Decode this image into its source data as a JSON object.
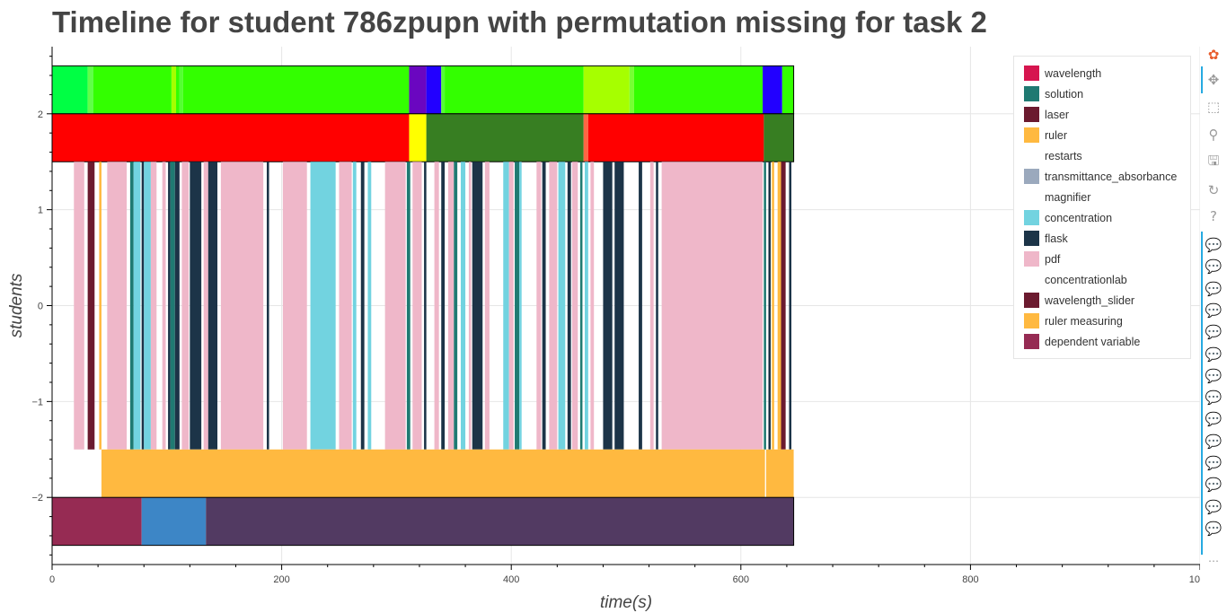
{
  "title": "Timeline for student 786zpupn with permutation missing for task 2",
  "chart_data": {
    "type": "bar",
    "orientation": "horizontal-timeline",
    "title": "Timeline for student 786zpupn with permutation missing for task 2",
    "xlabel": "time(s)",
    "ylabel": "students",
    "xlim": [
      0,
      1000
    ],
    "ylim": [
      -2.7,
      2.7
    ],
    "x_ticks": [
      0,
      200,
      400,
      600,
      800,
      1000
    ],
    "y_ticks": [
      -2,
      -1,
      0,
      1,
      2
    ],
    "x_tick_labels": [
      "0",
      "200",
      "400",
      "600",
      "800",
      "1000"
    ],
    "y_tick_labels": [
      "−2",
      "−1",
      "0",
      "1",
      "2"
    ],
    "grid": true,
    "legend_position": "top-right",
    "legend": [
      {
        "label": "wavelength",
        "color": "#d6154f"
      },
      {
        "label": "solution",
        "color": "#1f7a72"
      },
      {
        "label": "laser",
        "color": "#6b1a2f"
      },
      {
        "label": "ruler",
        "color": "#ffb940"
      },
      {
        "label": "restarts",
        "color": "#ffffff"
      },
      {
        "label": "transmittance_absorbance",
        "color": "#9ba9bd"
      },
      {
        "label": "magnifier",
        "color": "#ffffff"
      },
      {
        "label": "concentration",
        "color": "#72d3e0"
      },
      {
        "label": "flask",
        "color": "#1c3448"
      },
      {
        "label": "pdf",
        "color": "#efb7c9"
      },
      {
        "label": "concentrationlab",
        "color": "#ffffff"
      },
      {
        "label": "wavelength_slider",
        "color": "#6b1a2f"
      },
      {
        "label": "ruler measuring",
        "color": "#ffb940"
      },
      {
        "label": "dependent variable",
        "color": "#962b53"
      }
    ],
    "rows": [
      {
        "y0": 2.0,
        "y1": 2.5,
        "border": true,
        "segments": [
          {
            "x0": 0,
            "x1": 31,
            "color": "#00ff44"
          },
          {
            "x0": 31,
            "x1": 36,
            "color": "#60ff48"
          },
          {
            "x0": 36,
            "x1": 104,
            "color": "#33ff00"
          },
          {
            "x0": 104,
            "x1": 108,
            "color": "#a6ff00"
          },
          {
            "x0": 108,
            "x1": 111,
            "color": "#33ff00"
          },
          {
            "x0": 111,
            "x1": 114,
            "color": "#55ff33"
          },
          {
            "x0": 114,
            "x1": 311,
            "color": "#33ff00"
          },
          {
            "x0": 311,
            "x1": 326,
            "color": "#6a06c0"
          },
          {
            "x0": 326,
            "x1": 339,
            "color": "#2200ff"
          },
          {
            "x0": 339,
            "x1": 342,
            "color": "#55ff33"
          },
          {
            "x0": 342,
            "x1": 463,
            "color": "#33ff00"
          },
          {
            "x0": 463,
            "x1": 503,
            "color": "#a6ff00"
          },
          {
            "x0": 503,
            "x1": 507,
            "color": "#77ff33"
          },
          {
            "x0": 507,
            "x1": 619,
            "color": "#33ff00"
          },
          {
            "x0": 619,
            "x1": 636,
            "color": "#2200ff"
          },
          {
            "x0": 636,
            "x1": 646,
            "color": "#33ff00"
          }
        ]
      },
      {
        "y0": 1.5,
        "y1": 2.0,
        "border": true,
        "segments": [
          {
            "x0": 0,
            "x1": 311,
            "color": "#ff0000"
          },
          {
            "x0": 311,
            "x1": 326,
            "color": "#ffff00"
          },
          {
            "x0": 326,
            "x1": 463,
            "color": "#377e22"
          },
          {
            "x0": 463,
            "x1": 467,
            "color": "#ff6644"
          },
          {
            "x0": 467,
            "x1": 620,
            "color": "#ff0000"
          },
          {
            "x0": 620,
            "x1": 646,
            "color": "#377e22"
          }
        ]
      },
      {
        "y0": -1.5,
        "y1": 1.5,
        "border": false,
        "segments": [
          {
            "x0": 19,
            "x1": 28,
            "color": "#efb7c9"
          },
          {
            "x0": 31,
            "x1": 37,
            "color": "#6b1a2f"
          },
          {
            "x0": 41,
            "x1": 43,
            "color": "#ffb940"
          },
          {
            "x0": 48,
            "x1": 65,
            "color": "#efb7c9"
          },
          {
            "x0": 68,
            "x1": 71,
            "color": "#1f7a72"
          },
          {
            "x0": 71,
            "x1": 77,
            "color": "#72d3e0"
          },
          {
            "x0": 78,
            "x1": 80,
            "color": "#1c3448"
          },
          {
            "x0": 80,
            "x1": 86,
            "color": "#72d3e0"
          },
          {
            "x0": 86,
            "x1": 91,
            "color": "#efb7c9"
          },
          {
            "x0": 96,
            "x1": 99,
            "color": "#efb7c9"
          },
          {
            "x0": 101,
            "x1": 103,
            "color": "#1c3448"
          },
          {
            "x0": 103,
            "x1": 107,
            "color": "#1f7a72"
          },
          {
            "x0": 107,
            "x1": 111,
            "color": "#1c3448"
          },
          {
            "x0": 113,
            "x1": 119,
            "color": "#efb7c9"
          },
          {
            "x0": 120,
            "x1": 130,
            "color": "#1c3448"
          },
          {
            "x0": 132,
            "x1": 136,
            "color": "#efb7c9"
          },
          {
            "x0": 136,
            "x1": 144,
            "color": "#1c3448"
          },
          {
            "x0": 147,
            "x1": 184,
            "color": "#efb7c9"
          },
          {
            "x0": 187,
            "x1": 189,
            "color": "#1c3448"
          },
          {
            "x0": 201,
            "x1": 222,
            "color": "#efb7c9"
          },
          {
            "x0": 225,
            "x1": 247,
            "color": "#72d3e0"
          },
          {
            "x0": 250,
            "x1": 261,
            "color": "#efb7c9"
          },
          {
            "x0": 262,
            "x1": 265,
            "color": "#72d3e0"
          },
          {
            "x0": 269,
            "x1": 272,
            "color": "#1c3448"
          },
          {
            "x0": 275,
            "x1": 278,
            "color": "#72d3e0"
          },
          {
            "x0": 290,
            "x1": 308,
            "color": "#efb7c9"
          },
          {
            "x0": 309,
            "x1": 312,
            "color": "#1f7a72"
          },
          {
            "x0": 314,
            "x1": 322,
            "color": "#efb7c9"
          },
          {
            "x0": 324,
            "x1": 326,
            "color": "#1c3448"
          },
          {
            "x0": 333,
            "x1": 337,
            "color": "#efb7c9"
          },
          {
            "x0": 339,
            "x1": 342,
            "color": "#1c3448"
          },
          {
            "x0": 345,
            "x1": 350,
            "color": "#efb7c9"
          },
          {
            "x0": 350,
            "x1": 353,
            "color": "#1f7a72"
          },
          {
            "x0": 356,
            "x1": 360,
            "color": "#72d3e0"
          },
          {
            "x0": 363,
            "x1": 365,
            "color": "#efb7c9"
          },
          {
            "x0": 366,
            "x1": 375,
            "color": "#1c3448"
          },
          {
            "x0": 377,
            "x1": 381,
            "color": "#efb7c9"
          },
          {
            "x0": 393,
            "x1": 398,
            "color": "#72d3e0"
          },
          {
            "x0": 398,
            "x1": 402,
            "color": "#efb7c9"
          },
          {
            "x0": 403,
            "x1": 407,
            "color": "#1f7a72"
          },
          {
            "x0": 407,
            "x1": 409,
            "color": "#72d3e0"
          },
          {
            "x0": 422,
            "x1": 426,
            "color": "#efb7c9"
          },
          {
            "x0": 427,
            "x1": 430,
            "color": "#1c3448"
          },
          {
            "x0": 433,
            "x1": 440,
            "color": "#efb7c9"
          },
          {
            "x0": 441,
            "x1": 447,
            "color": "#72d3e0"
          },
          {
            "x0": 449,
            "x1": 452,
            "color": "#1c3448"
          },
          {
            "x0": 453,
            "x1": 458,
            "color": "#efb7c9"
          },
          {
            "x0": 460,
            "x1": 462,
            "color": "#1f7a72"
          },
          {
            "x0": 464,
            "x1": 467,
            "color": "#72d3e0"
          },
          {
            "x0": 469,
            "x1": 472,
            "color": "#efb7c9"
          },
          {
            "x0": 480,
            "x1": 488,
            "color": "#1c3448"
          },
          {
            "x0": 490,
            "x1": 498,
            "color": "#1c3448"
          },
          {
            "x0": 511,
            "x1": 514,
            "color": "#1c3448"
          },
          {
            "x0": 521,
            "x1": 524,
            "color": "#efb7c9"
          },
          {
            "x0": 526,
            "x1": 528,
            "color": "#1c3448"
          },
          {
            "x0": 531,
            "x1": 619,
            "color": "#efb7c9"
          },
          {
            "x0": 620,
            "x1": 622,
            "color": "#1f7a72"
          },
          {
            "x0": 624,
            "x1": 626,
            "color": "#1c3448"
          },
          {
            "x0": 627,
            "x1": 629,
            "color": "#ffb940"
          },
          {
            "x0": 632,
            "x1": 635,
            "color": "#ffb940"
          },
          {
            "x0": 635,
            "x1": 639,
            "color": "#6b1a2f"
          },
          {
            "x0": 642,
            "x1": 644,
            "color": "#1c3448"
          }
        ]
      },
      {
        "y0": -2.0,
        "y1": -1.5,
        "border": false,
        "segments": [
          {
            "x0": 43,
            "x1": 621,
            "color": "#ffb940"
          },
          {
            "x0": 622,
            "x1": 646,
            "color": "#ffb940"
          }
        ]
      },
      {
        "y0": -2.5,
        "y1": -2.0,
        "border": true,
        "segments": [
          {
            "x0": 0,
            "x1": 78,
            "color": "#962b53"
          },
          {
            "x0": 78,
            "x1": 134,
            "color": "#3d86c6"
          },
          {
            "x0": 134,
            "x1": 646,
            "color": "#523a62"
          }
        ]
      }
    ]
  },
  "toolbar": {
    "tools": [
      {
        "name": "bokeh-logo-icon",
        "glyph": "✿"
      },
      {
        "name": "pan-icon",
        "glyph": "✥"
      },
      {
        "name": "box-zoom-icon",
        "glyph": "⬚"
      },
      {
        "name": "wheel-zoom-icon",
        "glyph": "⚲"
      },
      {
        "name": "save-icon",
        "glyph": "🖫"
      },
      {
        "name": "reset-icon",
        "glyph": "↻"
      },
      {
        "name": "help-icon",
        "glyph": "?"
      },
      {
        "name": "hover-icon",
        "glyph": "💬"
      },
      {
        "name": "hover-icon",
        "glyph": "💬"
      },
      {
        "name": "hover-icon",
        "glyph": "💬"
      },
      {
        "name": "hover-icon",
        "glyph": "💬"
      },
      {
        "name": "hover-icon",
        "glyph": "💬"
      },
      {
        "name": "hover-icon",
        "glyph": "💬"
      },
      {
        "name": "hover-icon",
        "glyph": "💬"
      },
      {
        "name": "hover-icon",
        "glyph": "💬"
      },
      {
        "name": "hover-icon",
        "glyph": "💬"
      },
      {
        "name": "hover-icon",
        "glyph": "💬"
      },
      {
        "name": "hover-icon",
        "glyph": "💬"
      },
      {
        "name": "hover-icon",
        "glyph": "💬"
      },
      {
        "name": "hover-icon",
        "glyph": "💬"
      },
      {
        "name": "hover-icon",
        "glyph": "💬"
      }
    ],
    "more": "⋯"
  }
}
